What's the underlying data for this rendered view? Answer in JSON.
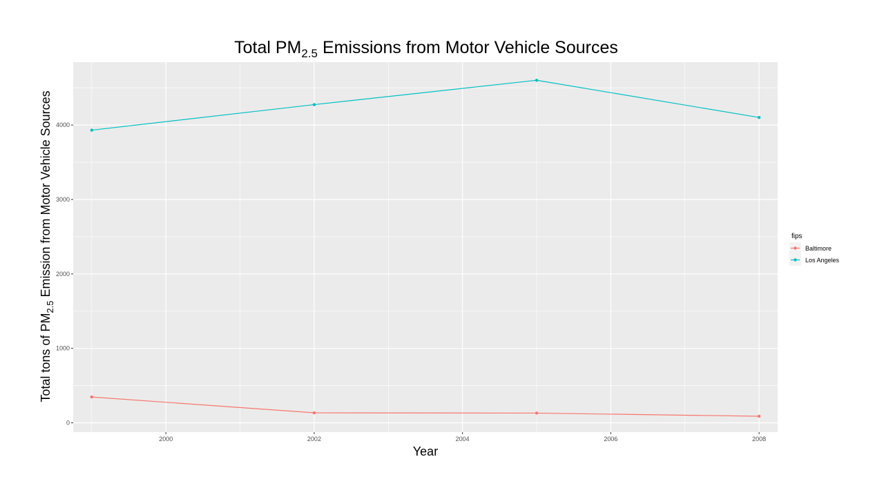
{
  "chart_data": {
    "type": "line",
    "title": {
      "main": "Total PM",
      "sub": "2.5",
      "rest": " Emissions from Motor Vehicle Sources"
    },
    "xlabel": "Year",
    "ylabel": {
      "main": "Total tons of PM",
      "sub": "2.5",
      "rest": " Emission from Motor Vehicle Sources"
    },
    "x": [
      1999,
      2002,
      2005,
      2008
    ],
    "series": [
      {
        "name": "Baltimore",
        "color": "#F8766D",
        "values": [
          346.82,
          134.31,
          130.43,
          88.28
        ]
      },
      {
        "name": "Los Angeles",
        "color": "#00BFC4",
        "values": [
          3931.12,
          4274.03,
          4601.41,
          4101.32
        ]
      }
    ],
    "xticks": [
      2000,
      2002,
      2004,
      2006,
      2008
    ],
    "yticks": [
      0,
      1000,
      2000,
      3000,
      4000
    ],
    "xlim": [
      1998.75,
      2008.25
    ],
    "ylim": [
      -125,
      4845
    ],
    "grid": true,
    "legend": {
      "title": "fips",
      "position": "right"
    },
    "panel_color": "#EBEBEB"
  }
}
